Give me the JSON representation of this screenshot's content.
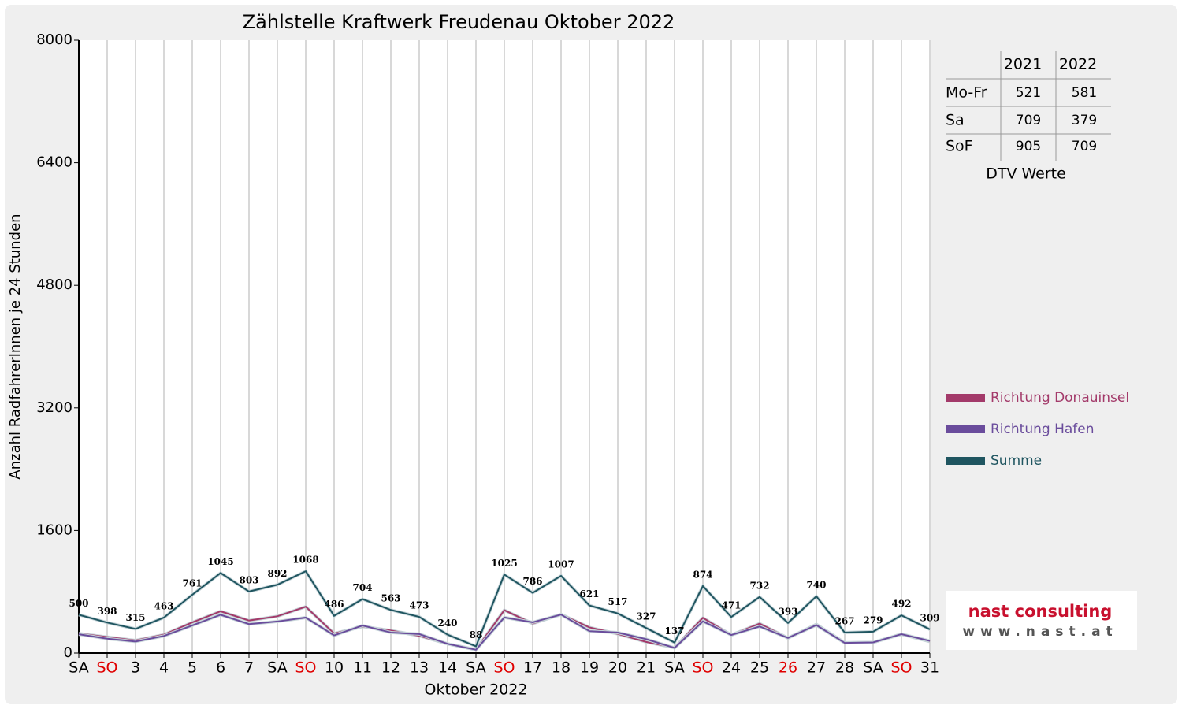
{
  "chart_data": {
    "type": "line",
    "title": "Zählstelle Kraftwerk Freudenau Oktober 2022",
    "x_label": "Oktober 2022",
    "y_label": "Anzahl RadfahrerInnen je 24 Stunden",
    "categories": [
      "SA",
      "SO",
      "3",
      "4",
      "5",
      "6",
      "7",
      "SA",
      "SO",
      "10",
      "11",
      "12",
      "13",
      "14",
      "SA",
      "SO",
      "17",
      "18",
      "19",
      "20",
      "21",
      "SA",
      "SO",
      "24",
      "25",
      "26",
      "27",
      "28",
      "SA",
      "SO",
      "31"
    ],
    "category_colors": [
      "#000000",
      "#e00000",
      "#000000",
      "#000000",
      "#000000",
      "#000000",
      "#000000",
      "#000000",
      "#e00000",
      "#000000",
      "#000000",
      "#000000",
      "#000000",
      "#000000",
      "#000000",
      "#e00000",
      "#000000",
      "#000000",
      "#000000",
      "#000000",
      "#000000",
      "#000000",
      "#e00000",
      "#000000",
      "#000000",
      "#e00000",
      "#000000",
      "#000000",
      "#000000",
      "#e00000",
      "#000000"
    ],
    "ylim": [
      0,
      8000
    ],
    "yticks": [
      0,
      1600,
      3200,
      4800,
      6400,
      8000
    ],
    "grid": "x",
    "series": [
      {
        "name": "Richtung Donauinsel",
        "color": "#a33a6a",
        "values": [
          255,
          210,
          165,
          240,
          400,
          545,
          425,
          480,
          605,
          255,
          345,
          295,
          225,
          120,
          45,
          560,
          385,
          505,
          335,
          250,
          145,
          70,
          460,
          235,
          385,
          195,
          375,
          135,
          140,
          245,
          150
        ]
      },
      {
        "name": "Richtung Hafen",
        "color": "#6a4c9c",
        "values": [
          245,
          188,
          150,
          223,
          361,
          500,
          378,
          412,
          463,
          231,
          359,
          268,
          248,
          120,
          43,
          465,
          401,
          502,
          286,
          267,
          182,
          67,
          414,
          236,
          347,
          198,
          365,
          132,
          139,
          247,
          159
        ]
      },
      {
        "name": "Summe",
        "color": "#1f5560",
        "show_labels": true,
        "values": [
          500,
          398,
          315,
          463,
          761,
          1045,
          803,
          892,
          1068,
          486,
          704,
          563,
          473,
          240,
          88,
          1025,
          786,
          1007,
          621,
          517,
          327,
          137,
          874,
          471,
          732,
          393,
          740,
          267,
          279,
          492,
          309
        ]
      }
    ]
  },
  "table": {
    "columns": [
      "2021",
      "2022"
    ],
    "rows": [
      [
        "Mo-Fr",
        "521",
        "581"
      ],
      [
        "Sa",
        "709",
        "379"
      ],
      [
        "SoF",
        "905",
        "709"
      ]
    ],
    "caption": "DTV Werte"
  },
  "logo": {
    "name": "nast consulting",
    "url": "www.nast.at"
  }
}
